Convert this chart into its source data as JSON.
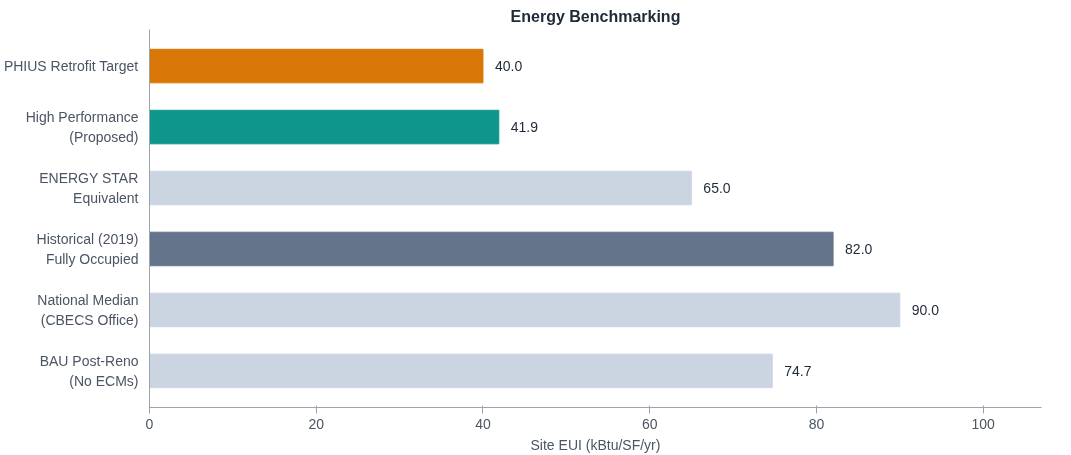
{
  "chart_data": {
    "type": "bar",
    "orientation": "horizontal",
    "title": "Energy Benchmarking",
    "xlabel": "Site EUI (kBtu/SF/yr)",
    "categories": [
      "PHIUS Retrofit Target",
      "High Performance\n(Proposed)",
      "ENERGY STAR\nEquivalent",
      "Historical (2019)\nFully Occupied",
      "National Median\n(CBECS Office)",
      "BAU Post-Reno\n(No ECMs)"
    ],
    "values": [
      40.0,
      41.9,
      65.0,
      82.0,
      90.0,
      74.7
    ],
    "value_labels": [
      "40.0",
      "41.9",
      "65.0",
      "82.0",
      "90.0",
      "74.7"
    ],
    "colors": [
      "#d97706",
      "#0f968a",
      "#cbd5e1",
      "#64748b",
      "#cbd5e1",
      "#cbd5e1"
    ],
    "xlim": [
      0,
      107
    ],
    "xticks": [
      0,
      20,
      40,
      60,
      80,
      100
    ],
    "grid": false
  }
}
